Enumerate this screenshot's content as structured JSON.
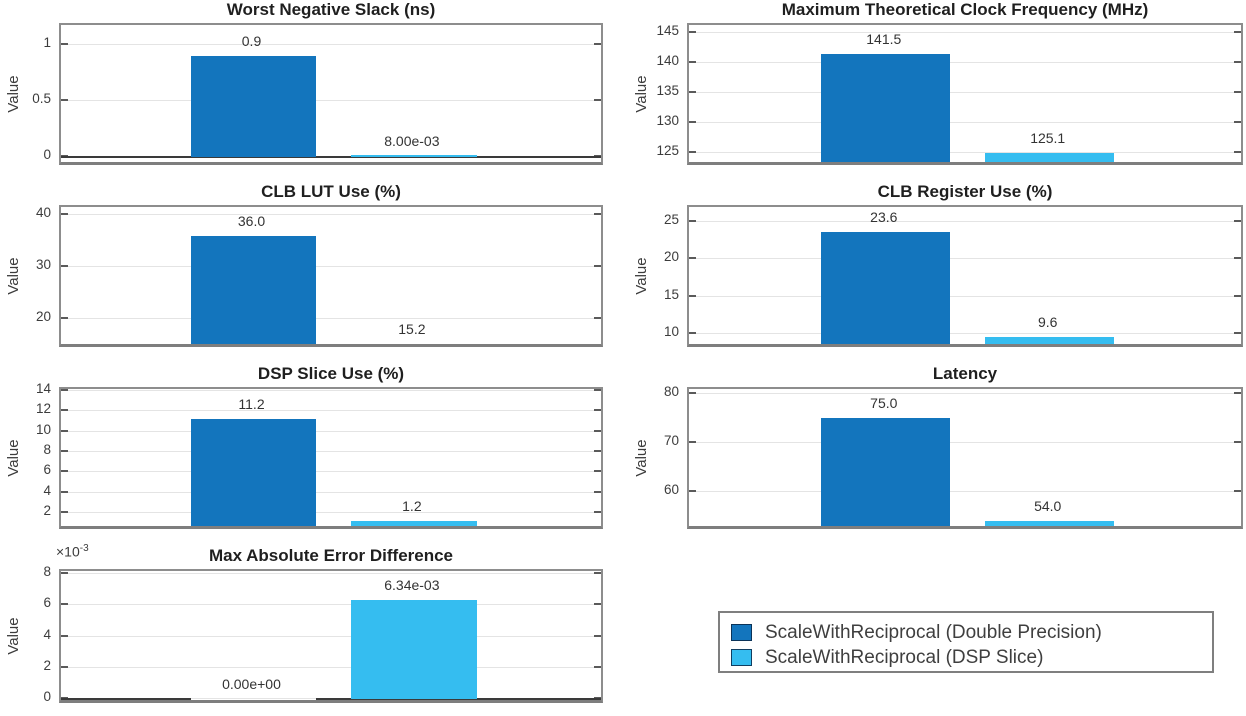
{
  "figure": {
    "background": "#ffffff"
  },
  "colors": {
    "series_dark_blue": "#1375BD",
    "series_light_blue": "#35BDF0",
    "grid": "#e4e4e4",
    "axes_border": "#8d8d8d",
    "baseline": "#3a3a3a"
  },
  "legend": {
    "entries": [
      {
        "label": "ScaleWithReciprocal (Double Precision)",
        "color": "#1375BD"
      },
      {
        "label": "ScaleWithReciprocal (DSP Slice)",
        "color": "#35BDF0"
      }
    ]
  },
  "chart_data": [
    {
      "type": "bar",
      "title": "Worst Negative Slack (ns)",
      "ylabel": "Value",
      "categories": [
        "ScaleWithReciprocal (Double Precision)",
        "ScaleWithReciprocal (DSP Slice)"
      ],
      "values": [
        0.9,
        0.008
      ],
      "bar_labels": [
        "0.9",
        "8.00e-03"
      ],
      "bar_colors": [
        "#1375BD",
        "#35BDF0"
      ],
      "ylim": [
        -0.089,
        1.179
      ],
      "yticks": [
        0,
        0.5,
        1
      ],
      "ytick_labels": [
        "0",
        "0.5",
        "1"
      ],
      "grid": "horizontal",
      "baseline": 0
    },
    {
      "type": "bar",
      "title": "Maximum Theoretical Clock Frequency (MHz)",
      "ylabel": "Value",
      "categories": [
        "ScaleWithReciprocal (Double Precision)",
        "ScaleWithReciprocal (DSP Slice)"
      ],
      "values": [
        141.5,
        125.1
      ],
      "bar_labels": [
        "141.5",
        "125.1"
      ],
      "bar_colors": [
        "#1375BD",
        "#35BDF0"
      ],
      "ylim": [
        122.7,
        146.3
      ],
      "yticks": [
        125,
        130,
        135,
        140,
        145
      ],
      "ytick_labels": [
        "125",
        "130",
        "135",
        "140",
        "145"
      ],
      "grid": "horizontal",
      "baseline": null
    },
    {
      "type": "bar",
      "title": "CLB LUT Use (%)",
      "ylabel": "Value",
      "categories": [
        "ScaleWithReciprocal (Double Precision)",
        "ScaleWithReciprocal (DSP Slice)"
      ],
      "values": [
        36.0,
        15.2
      ],
      "bar_labels": [
        "36.0",
        "15.2"
      ],
      "bar_colors": [
        "#1375BD",
        "#35BDF0"
      ],
      "ylim": [
        14.2,
        41.54
      ],
      "yticks": [
        20,
        30,
        40
      ],
      "ytick_labels": [
        "20",
        "30",
        "40"
      ],
      "grid": "horizontal",
      "baseline": null
    },
    {
      "type": "bar",
      "title": "CLB Register Use (%)",
      "ylabel": "Value",
      "categories": [
        "ScaleWithReciprocal (Double Precision)",
        "ScaleWithReciprocal (DSP Slice)"
      ],
      "values": [
        23.6,
        9.6
      ],
      "bar_labels": [
        "23.6",
        "9.6"
      ],
      "bar_colors": [
        "#1375BD",
        "#35BDF0"
      ],
      "ylim": [
        8.0,
        27.0
      ],
      "yticks": [
        10,
        15,
        20,
        25
      ],
      "ytick_labels": [
        "10",
        "15",
        "20",
        "25"
      ],
      "grid": "horizontal",
      "baseline": null
    },
    {
      "type": "bar",
      "title": "DSP Slice Use (%)",
      "ylabel": "Value",
      "categories": [
        "ScaleWithReciprocal (Double Precision)",
        "ScaleWithReciprocal (DSP Slice)"
      ],
      "values": [
        11.2,
        1.2
      ],
      "bar_labels": [
        "11.2",
        "1.2"
      ],
      "bar_colors": [
        "#1375BD",
        "#35BDF0"
      ],
      "ylim": [
        0.23,
        14.2
      ],
      "yticks": [
        2,
        4,
        6,
        8,
        10,
        12,
        14
      ],
      "ytick_labels": [
        "2",
        "4",
        "6",
        "8",
        "10",
        "12",
        "14"
      ],
      "grid": "horizontal",
      "baseline": null
    },
    {
      "type": "bar",
      "title": "Latency",
      "ylabel": "Value",
      "categories": [
        "ScaleWithReciprocal (Double Precision)",
        "ScaleWithReciprocal (DSP Slice)"
      ],
      "values": [
        75.0,
        54.0
      ],
      "bar_labels": [
        "75.0",
        "54.0"
      ],
      "bar_colors": [
        "#1375BD",
        "#35BDF0"
      ],
      "ylim": [
        52.0,
        81.0
      ],
      "yticks": [
        60,
        70,
        80
      ],
      "ytick_labels": [
        "60",
        "70",
        "80"
      ],
      "grid": "horizontal",
      "baseline": null
    },
    {
      "type": "bar",
      "title": "Max Absolute Error Difference",
      "ylabel": "Value",
      "categories": [
        "ScaleWithReciprocal (Double Precision)",
        "ScaleWithReciprocal (DSP Slice)"
      ],
      "values": [
        0.0,
        0.00634
      ],
      "bar_labels": [
        "0.00e+00",
        "6.34e-03"
      ],
      "bar_colors": [
        "#1375BD",
        "#35BDF0"
      ],
      "ylim": [
        -0.00038,
        0.00819
      ],
      "yticks": [
        0,
        0.002,
        0.004,
        0.006,
        0.008
      ],
      "ytick_labels": [
        "0",
        "2",
        "4",
        "6",
        "8"
      ],
      "grid": "horizontal",
      "baseline": 0,
      "offset_label": {
        "base": "×10",
        "exp": "-3"
      }
    }
  ]
}
